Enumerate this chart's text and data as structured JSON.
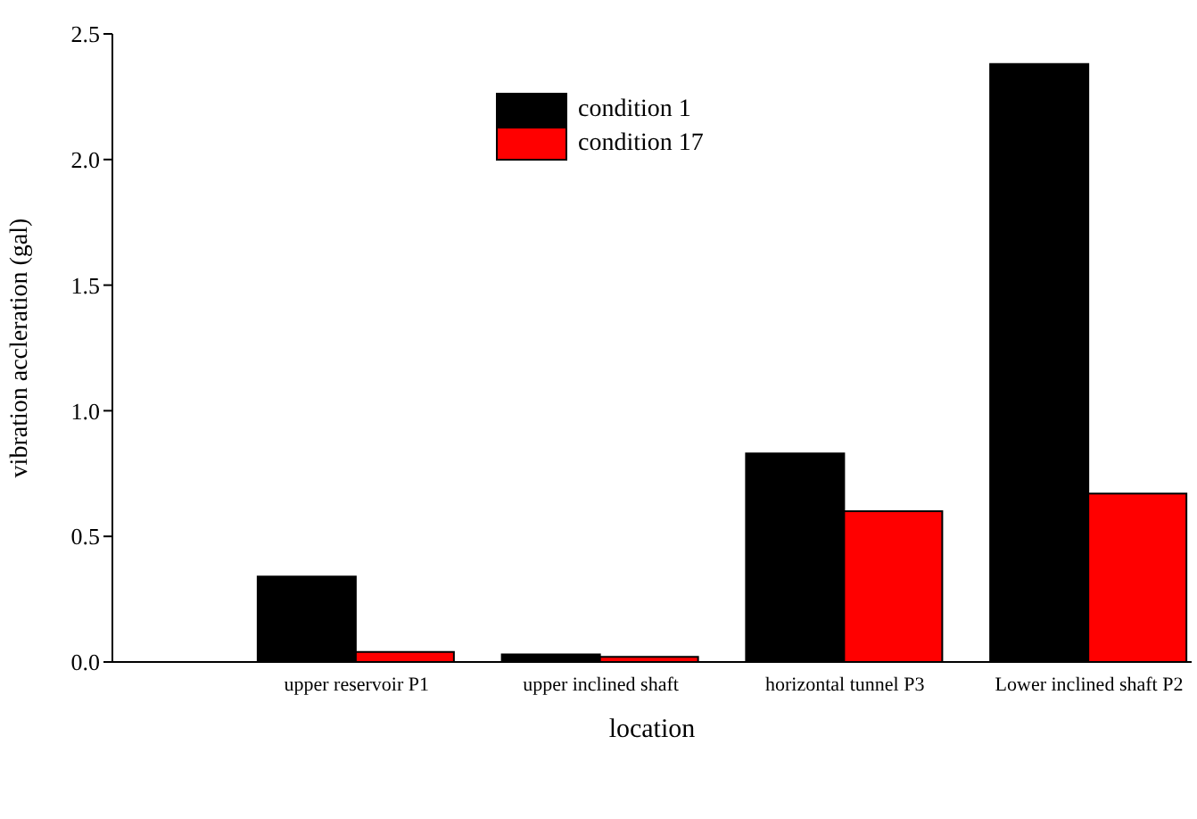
{
  "chart_data": {
    "type": "bar",
    "xlabel": "location",
    "ylabel": "vibration accleration (gal)",
    "categories": [
      "upper reservoir P1",
      "upper inclined shaft",
      "horizontal tunnel P3",
      "Lower inclined shaft P2"
    ],
    "series": [
      {
        "name": "condition 1",
        "color": "#000000",
        "values": [
          0.34,
          0.03,
          0.83,
          2.38
        ]
      },
      {
        "name": "condition 17",
        "color": "#ff0000",
        "values": [
          0.04,
          0.02,
          0.6,
          0.67
        ]
      }
    ],
    "ylim": [
      0,
      2.5
    ],
    "yticks": [
      {
        "value": 0,
        "label": "0.0"
      },
      {
        "value": 0.5,
        "label": "0.5"
      },
      {
        "value": 1,
        "label": "1.0"
      },
      {
        "value": 1.5,
        "label": "1.5"
      },
      {
        "value": 2,
        "label": "2.0"
      },
      {
        "value": 2.5,
        "label": "2.5"
      }
    ],
    "grid": false,
    "legend": "top center"
  }
}
